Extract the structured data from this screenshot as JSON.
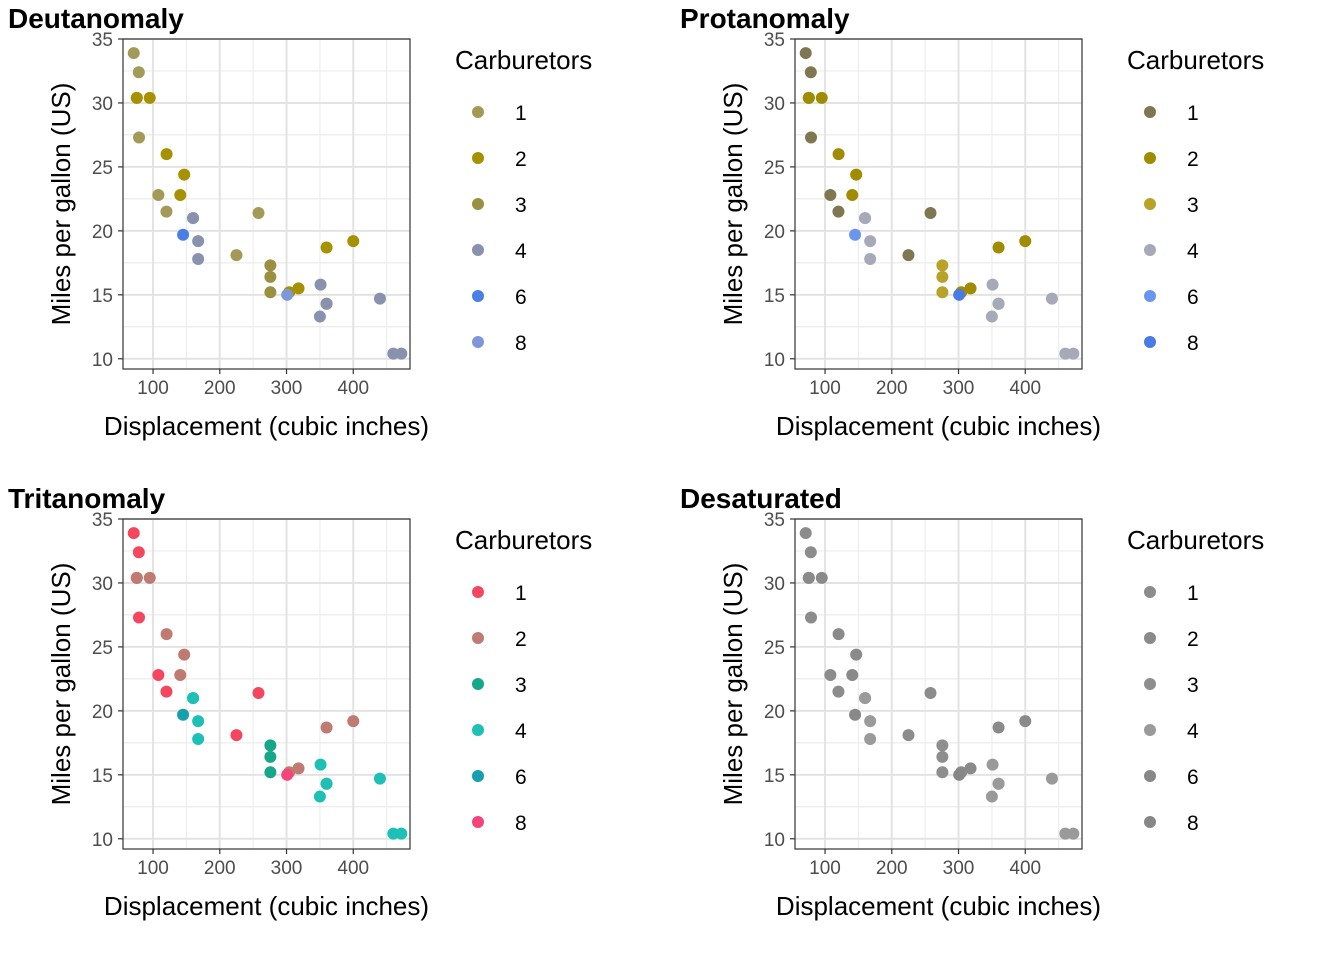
{
  "chart_data": [
    {
      "type": "scatter",
      "title": "Deutanomaly",
      "xlabel": "Displacement (cubic inches)",
      "ylabel": "Miles per gallon (US)",
      "x_ticks": [
        "100",
        "200",
        "300",
        "400"
      ],
      "y_ticks": [
        "10",
        "15",
        "20",
        "25",
        "30",
        "35"
      ],
      "xlim": [
        55,
        485
      ],
      "ylim": [
        9.2,
        35.0
      ],
      "grid": true,
      "legend_title": "Carburetors",
      "legend_position": "right",
      "series": [
        {
          "name": "1",
          "color": "#a49a58",
          "points": [
            [
              108,
              22.8
            ],
            [
              258,
              21.4
            ],
            [
              225,
              18.1
            ],
            [
              78.7,
              32.4
            ],
            [
              75.7,
              30.4
            ],
            [
              71.1,
              33.9
            ],
            [
              120.1,
              21.5
            ],
            [
              79,
              27.3
            ]
          ]
        },
        {
          "name": "2",
          "color": "#a69200",
          "points": [
            [
              360,
              18.7
            ],
            [
              146.7,
              24.4
            ],
            [
              140.8,
              22.8
            ],
            [
              360,
              14.3
            ],
            [
              75.7,
              30.4
            ],
            [
              318,
              15.5
            ],
            [
              304,
              15.2
            ],
            [
              400,
              19.2
            ],
            [
              120.3,
              26.0
            ],
            [
              95.1,
              30.4
            ]
          ]
        },
        {
          "name": "3",
          "color": "#9a9040",
          "points": [
            [
              275.8,
              16.4
            ],
            [
              275.8,
              17.3
            ],
            [
              275.8,
              15.2
            ]
          ]
        },
        {
          "name": "4",
          "color": "#8892ae",
          "points": [
            [
              160,
              21.0
            ],
            [
              160,
              21.0
            ],
            [
              360,
              14.3
            ],
            [
              167.6,
              19.2
            ],
            [
              167.6,
              17.8
            ],
            [
              472,
              10.4
            ],
            [
              460,
              10.4
            ],
            [
              440,
              14.7
            ],
            [
              350,
              13.3
            ],
            [
              351,
              15.8
            ]
          ]
        },
        {
          "name": "6",
          "color": "#4a7fe6",
          "points": [
            [
              145,
              19.7
            ]
          ]
        },
        {
          "name": "8",
          "color": "#7e97d8",
          "points": [
            [
              301,
              15.0
            ]
          ]
        }
      ]
    },
    {
      "type": "scatter",
      "title": "Protanomaly",
      "xlabel": "Displacement (cubic inches)",
      "ylabel": "Miles per gallon (US)",
      "x_ticks": [
        "100",
        "200",
        "300",
        "400"
      ],
      "y_ticks": [
        "10",
        "15",
        "20",
        "25",
        "30",
        "35"
      ],
      "xlim": [
        55,
        485
      ],
      "ylim": [
        9.2,
        35.0
      ],
      "grid": true,
      "legend_title": "Carburetors",
      "legend_position": "right",
      "series": [
        {
          "name": "1",
          "color": "#7f7752",
          "points": [
            [
              108,
              22.8
            ],
            [
              258,
              21.4
            ],
            [
              225,
              18.1
            ],
            [
              78.7,
              32.4
            ],
            [
              75.7,
              30.4
            ],
            [
              71.1,
              33.9
            ],
            [
              120.1,
              21.5
            ],
            [
              79,
              27.3
            ]
          ]
        },
        {
          "name": "2",
          "color": "#a08c00",
          "points": [
            [
              360,
              18.7
            ],
            [
              146.7,
              24.4
            ],
            [
              140.8,
              22.8
            ],
            [
              360,
              14.3
            ],
            [
              75.7,
              30.4
            ],
            [
              318,
              15.5
            ],
            [
              304,
              15.2
            ],
            [
              400,
              19.2
            ],
            [
              120.3,
              26.0
            ],
            [
              95.1,
              30.4
            ]
          ]
        },
        {
          "name": "3",
          "color": "#b8a228",
          "points": [
            [
              275.8,
              16.4
            ],
            [
              275.8,
              17.3
            ],
            [
              275.8,
              15.2
            ]
          ]
        },
        {
          "name": "4",
          "color": "#a5a9b8",
          "points": [
            [
              160,
              21.0
            ],
            [
              160,
              21.0
            ],
            [
              360,
              14.3
            ],
            [
              167.6,
              19.2
            ],
            [
              167.6,
              17.8
            ],
            [
              472,
              10.4
            ],
            [
              460,
              10.4
            ],
            [
              440,
              14.7
            ],
            [
              350,
              13.3
            ],
            [
              351,
              15.8
            ]
          ]
        },
        {
          "name": "6",
          "color": "#6a96ee",
          "points": [
            [
              145,
              19.7
            ]
          ]
        },
        {
          "name": "8",
          "color": "#4a7ae3",
          "points": [
            [
              301,
              15.0
            ]
          ]
        }
      ]
    },
    {
      "type": "scatter",
      "title": "Tritanomaly",
      "xlabel": "Displacement (cubic inches)",
      "ylabel": "Miles per gallon (US)",
      "x_ticks": [
        "100",
        "200",
        "300",
        "400"
      ],
      "y_ticks": [
        "10",
        "15",
        "20",
        "25",
        "30",
        "35"
      ],
      "xlim": [
        55,
        485
      ],
      "ylim": [
        9.2,
        35.0
      ],
      "grid": true,
      "legend_title": "Carburetors",
      "legend_position": "right",
      "series": [
        {
          "name": "1",
          "color": "#f4475f",
          "points": [
            [
              108,
              22.8
            ],
            [
              258,
              21.4
            ],
            [
              225,
              18.1
            ],
            [
              78.7,
              32.4
            ],
            [
              75.7,
              30.4
            ],
            [
              71.1,
              33.9
            ],
            [
              120.1,
              21.5
            ],
            [
              79,
              27.3
            ]
          ]
        },
        {
          "name": "2",
          "color": "#bf7a72",
          "points": [
            [
              360,
              18.7
            ],
            [
              146.7,
              24.4
            ],
            [
              140.8,
              22.8
            ],
            [
              360,
              14.3
            ],
            [
              75.7,
              30.4
            ],
            [
              318,
              15.5
            ],
            [
              304,
              15.2
            ],
            [
              400,
              19.2
            ],
            [
              120.3,
              26.0
            ],
            [
              95.1,
              30.4
            ]
          ]
        },
        {
          "name": "3",
          "color": "#16a68a",
          "points": [
            [
              275.8,
              16.4
            ],
            [
              275.8,
              17.3
            ],
            [
              275.8,
              15.2
            ]
          ]
        },
        {
          "name": "4",
          "color": "#1cc0b4",
          "points": [
            [
              160,
              21.0
            ],
            [
              160,
              21.0
            ],
            [
              360,
              14.3
            ],
            [
              167.6,
              19.2
            ],
            [
              167.6,
              17.8
            ],
            [
              472,
              10.4
            ],
            [
              460,
              10.4
            ],
            [
              440,
              14.7
            ],
            [
              350,
              13.3
            ],
            [
              351,
              15.8
            ]
          ]
        },
        {
          "name": "6",
          "color": "#14a0ac",
          "points": [
            [
              145,
              19.7
            ]
          ]
        },
        {
          "name": "8",
          "color": "#f5447a",
          "points": [
            [
              301,
              15.0
            ]
          ]
        }
      ]
    },
    {
      "type": "scatter",
      "title": "Desaturated",
      "xlabel": "Displacement (cubic inches)",
      "ylabel": "Miles per gallon (US)",
      "x_ticks": [
        "100",
        "200",
        "300",
        "400"
      ],
      "y_ticks": [
        "10",
        "15",
        "20",
        "25",
        "30",
        "35"
      ],
      "xlim": [
        55,
        485
      ],
      "ylim": [
        9.2,
        35.0
      ],
      "grid": true,
      "legend_title": "Carburetors",
      "legend_position": "right",
      "series": [
        {
          "name": "1",
          "color": "#8c8c8c",
          "points": [
            [
              108,
              22.8
            ],
            [
              258,
              21.4
            ],
            [
              225,
              18.1
            ],
            [
              78.7,
              32.4
            ],
            [
              75.7,
              30.4
            ],
            [
              71.1,
              33.9
            ],
            [
              120.1,
              21.5
            ],
            [
              79,
              27.3
            ]
          ]
        },
        {
          "name": "2",
          "color": "#8a8a8a",
          "points": [
            [
              360,
              18.7
            ],
            [
              146.7,
              24.4
            ],
            [
              140.8,
              22.8
            ],
            [
              360,
              14.3
            ],
            [
              75.7,
              30.4
            ],
            [
              318,
              15.5
            ],
            [
              304,
              15.2
            ],
            [
              400,
              19.2
            ],
            [
              120.3,
              26.0
            ],
            [
              95.1,
              30.4
            ]
          ]
        },
        {
          "name": "3",
          "color": "#8e8e8e",
          "points": [
            [
              275.8,
              16.4
            ],
            [
              275.8,
              17.3
            ],
            [
              275.8,
              15.2
            ]
          ]
        },
        {
          "name": "4",
          "color": "#9a9a9a",
          "points": [
            [
              160,
              21.0
            ],
            [
              160,
              21.0
            ],
            [
              360,
              14.3
            ],
            [
              167.6,
              19.2
            ],
            [
              167.6,
              17.8
            ],
            [
              472,
              10.4
            ],
            [
              460,
              10.4
            ],
            [
              440,
              14.7
            ],
            [
              350,
              13.3
            ],
            [
              351,
              15.8
            ]
          ]
        },
        {
          "name": "6",
          "color": "#888888",
          "points": [
            [
              145,
              19.7
            ]
          ]
        },
        {
          "name": "8",
          "color": "#878787",
          "points": [
            [
              301,
              15.0
            ]
          ]
        }
      ]
    }
  ]
}
